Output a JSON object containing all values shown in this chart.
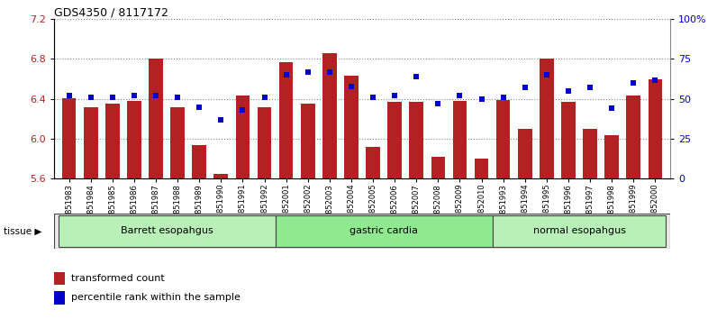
{
  "title": "GDS4350 / 8117172",
  "samples": [
    "GSM851983",
    "GSM851984",
    "GSM851985",
    "GSM851986",
    "GSM851987",
    "GSM851988",
    "GSM851989",
    "GSM851990",
    "GSM851991",
    "GSM851992",
    "GSM852001",
    "GSM852002",
    "GSM852003",
    "GSM852004",
    "GSM852005",
    "GSM852006",
    "GSM852007",
    "GSM852008",
    "GSM852009",
    "GSM852010",
    "GSM851993",
    "GSM851994",
    "GSM851995",
    "GSM851996",
    "GSM851997",
    "GSM851998",
    "GSM851999",
    "GSM852000"
  ],
  "transformed_count": [
    6.41,
    6.32,
    6.35,
    6.38,
    6.8,
    6.32,
    5.94,
    5.65,
    6.43,
    6.32,
    6.77,
    6.35,
    6.86,
    6.63,
    5.92,
    6.37,
    6.37,
    5.82,
    6.38,
    5.8,
    6.39,
    6.1,
    6.8,
    6.37,
    6.1,
    6.04,
    6.43,
    6.6
  ],
  "percentile_rank": [
    52,
    51,
    51,
    52,
    52,
    51,
    45,
    37,
    43,
    51,
    65,
    67,
    67,
    58,
    51,
    52,
    64,
    47,
    52,
    50,
    51,
    57,
    65,
    55,
    57,
    44,
    60,
    62
  ],
  "groups": [
    {
      "label": "Barrett esopahgus",
      "start": 0,
      "end": 10
    },
    {
      "label": "gastric cardia",
      "start": 10,
      "end": 20
    },
    {
      "label": "normal esopahgus",
      "start": 20,
      "end": 28
    }
  ],
  "group_colors": [
    "#b8f0b8",
    "#90e890",
    "#b8f0b8"
  ],
  "ylim": [
    5.6,
    7.2
  ],
  "yticks": [
    5.6,
    6.0,
    6.4,
    6.8,
    7.2
  ],
  "y2lim": [
    0,
    100
  ],
  "y2ticks": [
    0,
    25,
    50,
    75,
    100
  ],
  "bar_color": "#B22222",
  "dot_color": "#0000CC",
  "background_color": "#FFFFFF",
  "dotted_grid_color": "#888888",
  "bar_bottom": 5.6
}
